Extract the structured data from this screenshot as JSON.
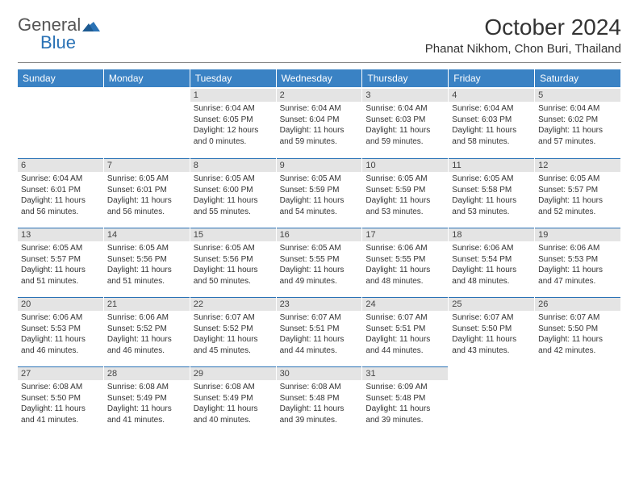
{
  "logo": {
    "word1": "General",
    "word2": "Blue"
  },
  "title": "October 2024",
  "location": "Phanat Nikhom, Chon Buri, Thailand",
  "colors": {
    "header_bg": "#3a82c4",
    "daynum_bg": "#e4e4e4",
    "rule": "#2a72b5",
    "text": "#333333"
  },
  "day_headers": [
    "Sunday",
    "Monday",
    "Tuesday",
    "Wednesday",
    "Thursday",
    "Friday",
    "Saturday"
  ],
  "weeks": [
    [
      null,
      null,
      {
        "n": "1",
        "sr": "6:04 AM",
        "ss": "6:05 PM",
        "dl": "12 hours and 0 minutes."
      },
      {
        "n": "2",
        "sr": "6:04 AM",
        "ss": "6:04 PM",
        "dl": "11 hours and 59 minutes."
      },
      {
        "n": "3",
        "sr": "6:04 AM",
        "ss": "6:03 PM",
        "dl": "11 hours and 59 minutes."
      },
      {
        "n": "4",
        "sr": "6:04 AM",
        "ss": "6:03 PM",
        "dl": "11 hours and 58 minutes."
      },
      {
        "n": "5",
        "sr": "6:04 AM",
        "ss": "6:02 PM",
        "dl": "11 hours and 57 minutes."
      }
    ],
    [
      {
        "n": "6",
        "sr": "6:04 AM",
        "ss": "6:01 PM",
        "dl": "11 hours and 56 minutes."
      },
      {
        "n": "7",
        "sr": "6:05 AM",
        "ss": "6:01 PM",
        "dl": "11 hours and 56 minutes."
      },
      {
        "n": "8",
        "sr": "6:05 AM",
        "ss": "6:00 PM",
        "dl": "11 hours and 55 minutes."
      },
      {
        "n": "9",
        "sr": "6:05 AM",
        "ss": "5:59 PM",
        "dl": "11 hours and 54 minutes."
      },
      {
        "n": "10",
        "sr": "6:05 AM",
        "ss": "5:59 PM",
        "dl": "11 hours and 53 minutes."
      },
      {
        "n": "11",
        "sr": "6:05 AM",
        "ss": "5:58 PM",
        "dl": "11 hours and 53 minutes."
      },
      {
        "n": "12",
        "sr": "6:05 AM",
        "ss": "5:57 PM",
        "dl": "11 hours and 52 minutes."
      }
    ],
    [
      {
        "n": "13",
        "sr": "6:05 AM",
        "ss": "5:57 PM",
        "dl": "11 hours and 51 minutes."
      },
      {
        "n": "14",
        "sr": "6:05 AM",
        "ss": "5:56 PM",
        "dl": "11 hours and 51 minutes."
      },
      {
        "n": "15",
        "sr": "6:05 AM",
        "ss": "5:56 PM",
        "dl": "11 hours and 50 minutes."
      },
      {
        "n": "16",
        "sr": "6:05 AM",
        "ss": "5:55 PM",
        "dl": "11 hours and 49 minutes."
      },
      {
        "n": "17",
        "sr": "6:06 AM",
        "ss": "5:55 PM",
        "dl": "11 hours and 48 minutes."
      },
      {
        "n": "18",
        "sr": "6:06 AM",
        "ss": "5:54 PM",
        "dl": "11 hours and 48 minutes."
      },
      {
        "n": "19",
        "sr": "6:06 AM",
        "ss": "5:53 PM",
        "dl": "11 hours and 47 minutes."
      }
    ],
    [
      {
        "n": "20",
        "sr": "6:06 AM",
        "ss": "5:53 PM",
        "dl": "11 hours and 46 minutes."
      },
      {
        "n": "21",
        "sr": "6:06 AM",
        "ss": "5:52 PM",
        "dl": "11 hours and 46 minutes."
      },
      {
        "n": "22",
        "sr": "6:07 AM",
        "ss": "5:52 PM",
        "dl": "11 hours and 45 minutes."
      },
      {
        "n": "23",
        "sr": "6:07 AM",
        "ss": "5:51 PM",
        "dl": "11 hours and 44 minutes."
      },
      {
        "n": "24",
        "sr": "6:07 AM",
        "ss": "5:51 PM",
        "dl": "11 hours and 44 minutes."
      },
      {
        "n": "25",
        "sr": "6:07 AM",
        "ss": "5:50 PM",
        "dl": "11 hours and 43 minutes."
      },
      {
        "n": "26",
        "sr": "6:07 AM",
        "ss": "5:50 PM",
        "dl": "11 hours and 42 minutes."
      }
    ],
    [
      {
        "n": "27",
        "sr": "6:08 AM",
        "ss": "5:50 PM",
        "dl": "11 hours and 41 minutes."
      },
      {
        "n": "28",
        "sr": "6:08 AM",
        "ss": "5:49 PM",
        "dl": "11 hours and 41 minutes."
      },
      {
        "n": "29",
        "sr": "6:08 AM",
        "ss": "5:49 PM",
        "dl": "11 hours and 40 minutes."
      },
      {
        "n": "30",
        "sr": "6:08 AM",
        "ss": "5:48 PM",
        "dl": "11 hours and 39 minutes."
      },
      {
        "n": "31",
        "sr": "6:09 AM",
        "ss": "5:48 PM",
        "dl": "11 hours and 39 minutes."
      },
      null,
      null
    ]
  ],
  "labels": {
    "sunrise": "Sunrise:",
    "sunset": "Sunset:",
    "daylight": "Daylight:"
  }
}
